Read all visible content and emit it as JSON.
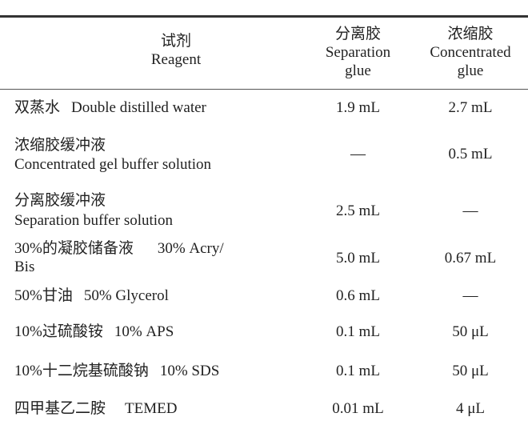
{
  "header": {
    "reagent": {
      "zh": "试剂",
      "en": "Reagent"
    },
    "separation": {
      "zh": "分离胶",
      "en1": "Separation",
      "en2": "glue"
    },
    "concentrated": {
      "zh": "浓缩胶",
      "en1": "Concentrated",
      "en2": "glue"
    }
  },
  "rows": [
    {
      "zh": "双蒸水",
      "en": "Double distilled water",
      "sep": "1.9 mL",
      "conc": "2.7 mL"
    },
    {
      "zh": "浓缩胶缓冲液",
      "en": "Concentrated gel buffer solution",
      "sep": "—",
      "conc": "0.5 mL"
    },
    {
      "zh": "分离胶缓冲液",
      "en": "Separation buffer solution",
      "sep": "2.5 mL",
      "conc": "—"
    },
    {
      "zh": "30%的凝胶储备液",
      "en": "30% Acry/",
      "en2": "Bis",
      "sep": "5.0 mL",
      "conc": "0.67 mL"
    },
    {
      "zh": "50%甘油",
      "en": "50% Glycerol",
      "sep": "0.6 mL",
      "conc": "—"
    },
    {
      "zh": "10%过硫酸铵",
      "en": "10% APS",
      "sep": "0.1 mL",
      "conc": "50 μL"
    },
    {
      "zh": "10%十二烷基硫酸钠",
      "en": "10% SDS",
      "sep": "0.1 mL",
      "conc": "50 μL"
    },
    {
      "zh": "四甲基乙二胺",
      "en": "TEMED",
      "sep": "0.01 mL",
      "conc": "4 μL"
    }
  ]
}
